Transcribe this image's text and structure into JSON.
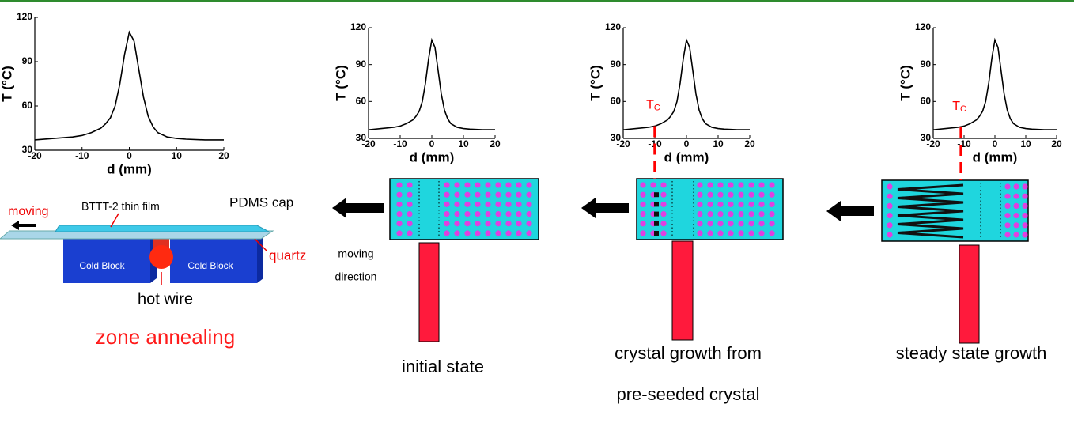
{
  "chart_data": [
    {
      "type": "line",
      "xlabel": "d (mm)",
      "ylabel": "T (°C)",
      "color": "#000000",
      "x": [
        -20,
        -16,
        -12,
        -10,
        -8,
        -6,
        -5,
        -4,
        -3,
        -2,
        -1,
        0,
        1,
        2,
        3,
        4,
        5,
        6,
        8,
        10,
        12,
        16,
        20
      ],
      "values": [
        37,
        38,
        39,
        40,
        42,
        45,
        48,
        52,
        60,
        75,
        95,
        110,
        104,
        85,
        66,
        53,
        46,
        42,
        39,
        38,
        37.5,
        37,
        37
      ],
      "xlim": [
        -20,
        20
      ],
      "ylim": [
        30,
        120
      ],
      "xticks": [
        -20,
        -10,
        0,
        10,
        20
      ],
      "yticks": [
        30,
        60,
        90,
        120
      ]
    },
    {
      "type": "line",
      "xlabel": "d (mm)",
      "ylabel": "T (°C)",
      "color": "#000000",
      "x": [
        -20,
        -16,
        -12,
        -10,
        -8,
        -6,
        -5,
        -4,
        -3,
        -2,
        -1,
        0,
        1,
        2,
        3,
        4,
        5,
        6,
        8,
        10,
        12,
        16,
        20
      ],
      "values": [
        37,
        38,
        39,
        40,
        42,
        45,
        48,
        52,
        60,
        75,
        95,
        110,
        104,
        85,
        66,
        53,
        46,
        42,
        39,
        38,
        37.5,
        37,
        37
      ],
      "xlim": [
        -20,
        20
      ],
      "ylim": [
        30,
        120
      ],
      "xticks": [
        -20,
        -10,
        0,
        10,
        20
      ],
      "yticks": [
        30,
        60,
        90,
        120
      ]
    },
    {
      "type": "line",
      "xlabel": "d (mm)",
      "ylabel": "T (°C)",
      "color": "#000000",
      "x": [
        -20,
        -16,
        -12,
        -10,
        -8,
        -6,
        -5,
        -4,
        -3,
        -2,
        -1,
        0,
        1,
        2,
        3,
        4,
        5,
        6,
        8,
        10,
        12,
        16,
        20
      ],
      "values": [
        37,
        38,
        39,
        40,
        42,
        45,
        48,
        52,
        60,
        75,
        95,
        110,
        104,
        85,
        66,
        53,
        46,
        42,
        39,
        38,
        37.5,
        37,
        37
      ],
      "xlim": [
        -20,
        20
      ],
      "ylim": [
        30,
        120
      ],
      "xticks": [
        -20,
        -10,
        0,
        10,
        20
      ],
      "yticks": [
        30,
        60,
        90,
        120
      ],
      "annotation": {
        "text": "T",
        "subscript": "C",
        "x": -10,
        "color": "#ff0000"
      }
    },
    {
      "type": "line",
      "xlabel": "d (mm)",
      "ylabel": "T (°C)",
      "color": "#000000",
      "x": [
        -20,
        -16,
        -12,
        -10,
        -8,
        -6,
        -5,
        -4,
        -3,
        -2,
        -1,
        0,
        1,
        2,
        3,
        4,
        5,
        6,
        8,
        10,
        12,
        16,
        20
      ],
      "values": [
        37,
        38,
        39,
        40,
        42,
        45,
        48,
        52,
        60,
        75,
        95,
        110,
        104,
        85,
        66,
        53,
        46,
        42,
        39,
        38,
        37.5,
        37,
        37
      ],
      "xlim": [
        -20,
        20
      ],
      "ylim": [
        30,
        120
      ],
      "xticks": [
        -20,
        -10,
        0,
        10,
        20
      ],
      "yticks": [
        30,
        60,
        90,
        120
      ],
      "annotation": {
        "text": "T",
        "subscript": "C",
        "x": -11,
        "color": "#ff0000"
      }
    }
  ],
  "diagram": {
    "apparatus": {
      "moving": "moving",
      "film": "BTTT-2 thin film",
      "cap": "PDMS cap",
      "quartz": "quartz",
      "block_left": "Cold Block",
      "block_right": "Cold Block",
      "wire": "hot wire",
      "caption": "zone annealing"
    },
    "direction": [
      "moving",
      "direction"
    ],
    "stages": [
      {
        "caption": [
          "initial state"
        ]
      },
      {
        "caption": [
          "crystal growth from",
          "pre-seeded crystal"
        ]
      },
      {
        "caption": [
          "steady state growth"
        ]
      }
    ]
  }
}
